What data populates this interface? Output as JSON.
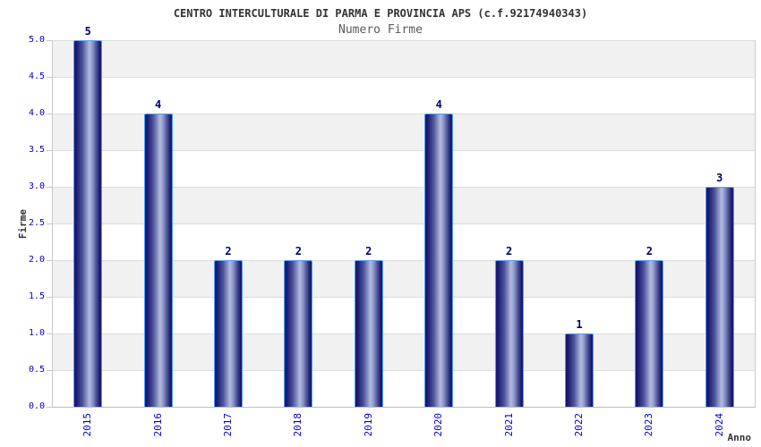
{
  "chart_data": {
    "type": "bar",
    "title": "CENTRO INTERCULTURALE DI PARMA E PROVINCIA APS (c.f.92174940343)",
    "subtitle": "Numero Firme",
    "xlabel": "Anno",
    "ylabel": "Firme",
    "categories": [
      "2015",
      "2016",
      "2017",
      "2018",
      "2019",
      "2020",
      "2021",
      "2022",
      "2023",
      "2024"
    ],
    "values": [
      5,
      4,
      2,
      2,
      2,
      4,
      2,
      1,
      2,
      3
    ],
    "ylim": [
      0,
      5
    ],
    "ytick_step": 0.5,
    "yticks": [
      "5.0",
      "4.5",
      "4.0",
      "3.5",
      "3.0",
      "2.5",
      "2.0",
      "1.5",
      "1.0",
      "0.5",
      "0.0"
    ],
    "grid": "horizontal-bands",
    "legend": "none",
    "colors": {
      "bar_dark": "#191970",
      "bar_mid": "#4a5298",
      "bar_light": "#b3bbe0",
      "bar_border": "#4f9eff",
      "tick_label": "#0000cc",
      "value_label": "#000066",
      "band_gray": "#f1f1f1",
      "band_white": "#ffffff",
      "gridline": "#dcdcdc",
      "title_color": "#333333",
      "subtitle_color": "#5a5a5a"
    }
  }
}
